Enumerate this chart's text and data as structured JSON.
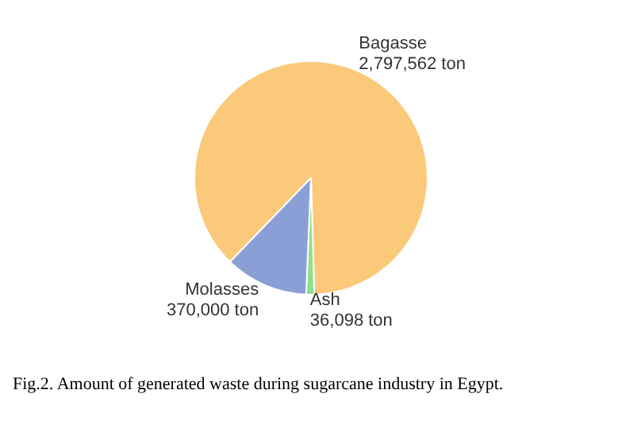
{
  "chart_data": {
    "type": "pie",
    "categories": [
      "Bagasse",
      "Ash",
      "Molasses"
    ],
    "values": [
      2797562,
      36098,
      370000
    ],
    "colors": [
      "#fbc97a",
      "#8ee08a",
      "#8a9fd6"
    ],
    "value_labels": [
      "2,797,562 ton",
      "36,098 ton",
      "370,000 ton"
    ],
    "legend": false,
    "annotations": [
      "Fig.2. Amount of generated waste during sugarcane industry in Egypt."
    ]
  }
}
